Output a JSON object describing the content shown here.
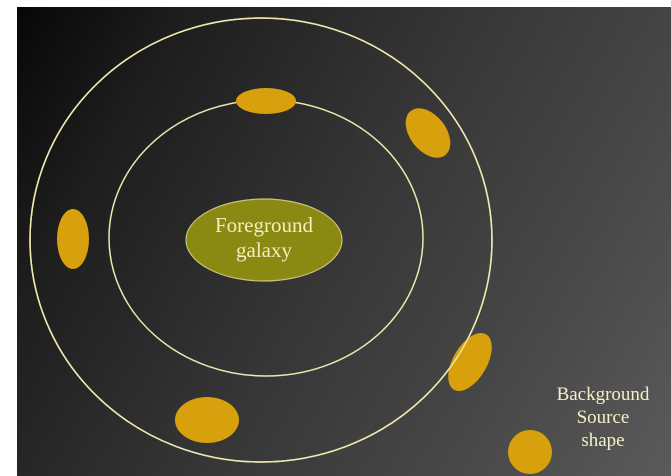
{
  "foreground_galaxy": {
    "label_line1": "Foreground",
    "label_line2": "galaxy",
    "color": "#8a8a12"
  },
  "background_source": {
    "label_line1": "Background",
    "label_line2": "Source",
    "label_line3": "shape",
    "color": "#d9a00e"
  },
  "rings": {
    "color": "#efe7b0",
    "count": 2
  },
  "arc_images": {
    "count": 6,
    "color": "#d9a00e"
  },
  "background": {
    "from_color": "#070707",
    "to_color": "#5a5a5a"
  }
}
